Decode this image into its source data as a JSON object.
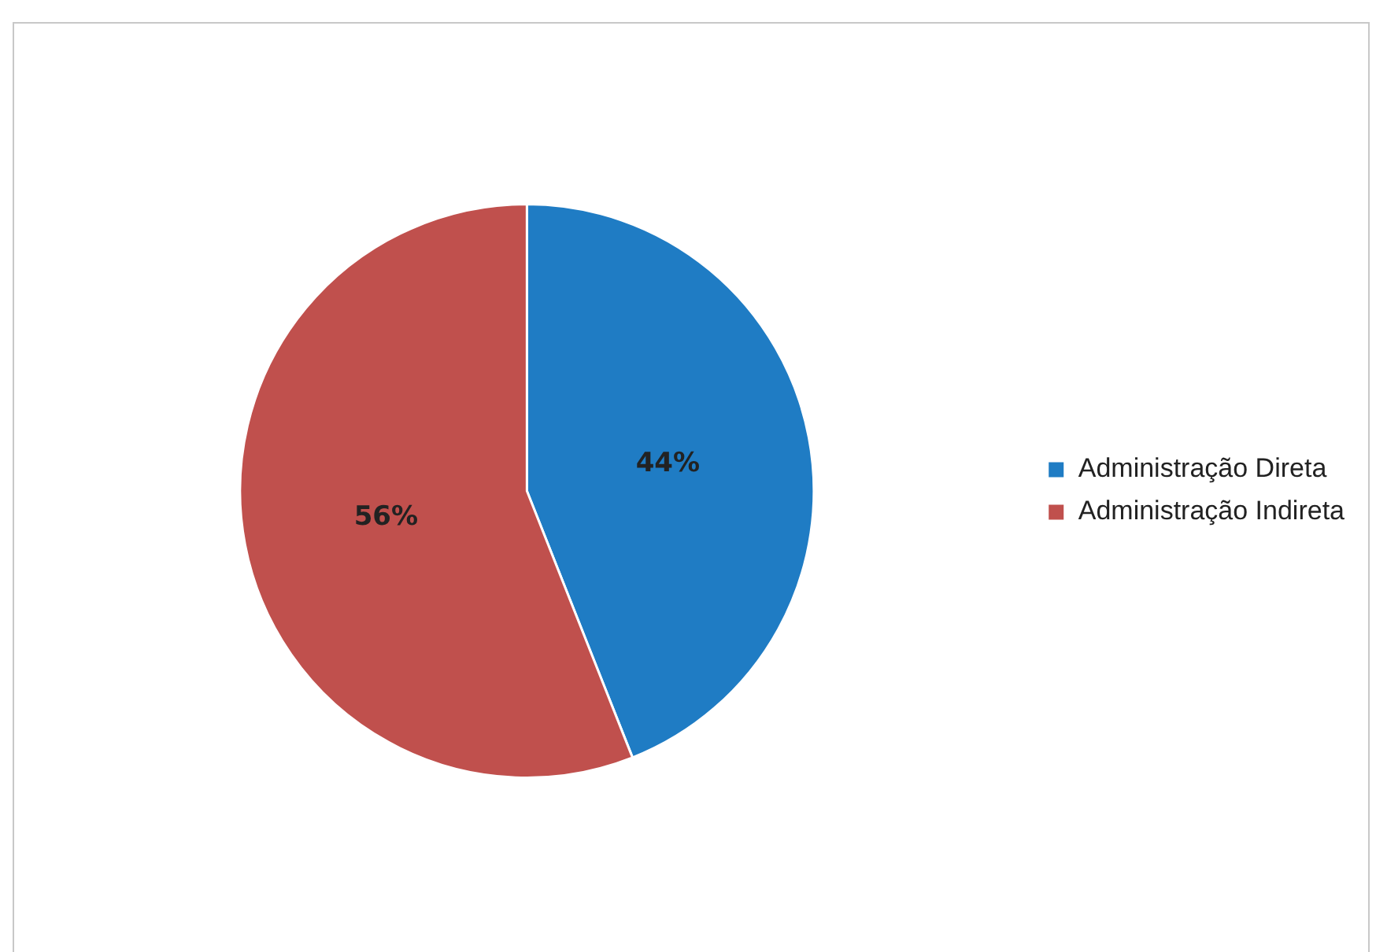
{
  "chart_data": {
    "type": "pie",
    "categories": [
      "Administração Direta",
      "Administração Indireta"
    ],
    "values": [
      44,
      56
    ],
    "colors": [
      "#1f7cc4",
      "#c0504d"
    ],
    "value_labels": [
      "44%",
      "56%"
    ],
    "legend": "right"
  }
}
